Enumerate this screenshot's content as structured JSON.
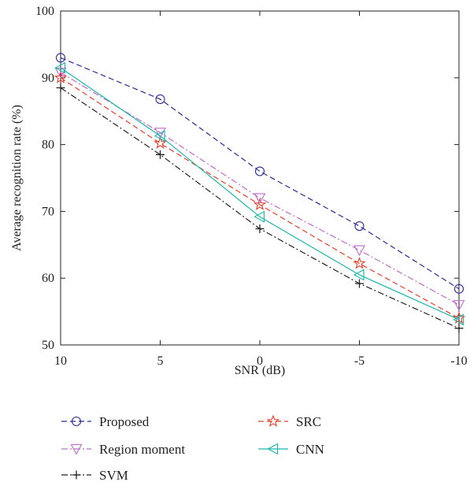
{
  "chart_data": {
    "type": "line",
    "xlabel": "SNR (dB)",
    "ylabel": "Average recognition rate (%)",
    "categories": [
      "10",
      "5",
      "0",
      "-5",
      "-10"
    ],
    "x": [
      10,
      5,
      0,
      -5,
      -10
    ],
    "ylim": [
      50,
      100
    ],
    "yticks": [
      50,
      60,
      70,
      80,
      90,
      100
    ],
    "grid": false,
    "legend_position": "bottom",
    "series": [
      {
        "name": "Proposed",
        "values": [
          93.0,
          86.8,
          76.0,
          67.8,
          58.4
        ],
        "color": "#2b2b9a",
        "dash": "dashed",
        "marker": "circle"
      },
      {
        "name": "SRC",
        "values": [
          90.0,
          80.2,
          71.0,
          62.2,
          54.0
        ],
        "color": "#e8402a",
        "dash": "dashed",
        "marker": "star"
      },
      {
        "name": "Region moment",
        "values": [
          90.8,
          81.8,
          72.0,
          64.2,
          56.0
        ],
        "color": "#c26ad0",
        "dash": "dashdot",
        "marker": "triangle-down"
      },
      {
        "name": "CNN",
        "values": [
          91.5,
          81.3,
          69.2,
          60.5,
          53.8
        ],
        "color": "#19b7ad",
        "dash": "solid",
        "marker": "triangle-left"
      },
      {
        "name": "SVM",
        "values": [
          88.5,
          78.5,
          67.4,
          59.2,
          52.5
        ],
        "color": "#222222",
        "dash": "dashdot",
        "marker": "plus"
      }
    ]
  }
}
